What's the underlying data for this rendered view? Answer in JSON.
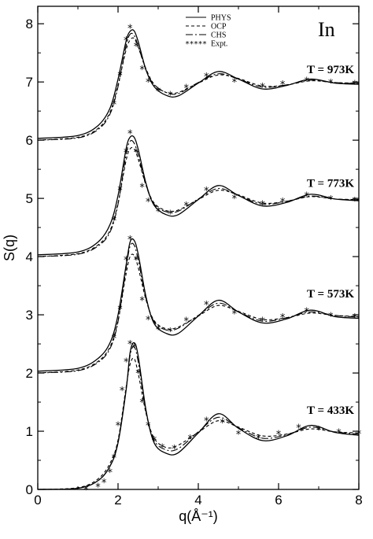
{
  "chart_data": {
    "type": "line",
    "xlabel": "q(Å⁻¹)",
    "ylabel": "S(q)",
    "element_label": "In",
    "xlim": [
      0,
      8
    ],
    "ylim": [
      0,
      8.3
    ],
    "x_ticks": [
      0,
      2,
      4,
      6,
      8
    ],
    "y_ticks": [
      0,
      1,
      2,
      3,
      4,
      5,
      6,
      7,
      8
    ],
    "grid": false,
    "legend_position": "top-center",
    "legend": [
      {
        "name": "PHYS",
        "style": "solid"
      },
      {
        "name": "OCP",
        "style": "dashed"
      },
      {
        "name": "CHS",
        "style": "dash-dot"
      },
      {
        "name": "Expt.",
        "style": "asterisk"
      }
    ],
    "panels": [
      {
        "label": "T = 973K",
        "offset": 6,
        "label_y": 7.15,
        "x": [
          0,
          1.0,
          1.5,
          1.8,
          2.0,
          2.2,
          2.3,
          2.4,
          2.5,
          2.7,
          2.9,
          3.2,
          3.5,
          4.0,
          4.5,
          5.0,
          5.6,
          6.2,
          6.8,
          7.4,
          8.0
        ],
        "PHYS": [
          0.03,
          0.08,
          0.25,
          0.55,
          1.05,
          1.7,
          1.87,
          1.88,
          1.7,
          1.2,
          0.92,
          0.77,
          0.76,
          0.98,
          1.18,
          1.05,
          0.88,
          0.94,
          1.05,
          0.98,
          0.96
        ],
        "OCP": [
          0.0,
          0.05,
          0.2,
          0.48,
          0.95,
          1.55,
          1.72,
          1.75,
          1.6,
          1.22,
          0.96,
          0.82,
          0.82,
          0.98,
          1.12,
          1.06,
          0.93,
          0.95,
          1.02,
          0.99,
          0.98
        ],
        "CHS": [
          0.0,
          0.04,
          0.18,
          0.45,
          0.92,
          1.62,
          1.82,
          1.8,
          1.62,
          1.2,
          0.95,
          0.82,
          0.8,
          0.99,
          1.14,
          1.05,
          0.91,
          0.95,
          1.03,
          0.99,
          0.97
        ],
        "expt_x": [
          1.9,
          2.05,
          2.2,
          2.3,
          2.45,
          2.6,
          2.75,
          3.0,
          3.3,
          3.7,
          4.2,
          4.9,
          5.6,
          6.1,
          6.7,
          7.3,
          7.9
        ],
        "expt_y": [
          0.62,
          1.12,
          1.72,
          1.93,
          1.62,
          1.22,
          1.0,
          0.85,
          0.78,
          0.9,
          1.1,
          1.0,
          0.92,
          0.96,
          1.02,
          0.99,
          0.97
        ]
      },
      {
        "label": "T = 773K",
        "offset": 4,
        "label_y": 5.2,
        "x": [
          0,
          1.0,
          1.5,
          1.8,
          2.0,
          2.2,
          2.3,
          2.4,
          2.5,
          2.7,
          2.9,
          3.2,
          3.5,
          4.0,
          4.5,
          5.0,
          5.6,
          6.2,
          6.8,
          7.4,
          8.0
        ],
        "PHYS": [
          0.03,
          0.08,
          0.25,
          0.55,
          1.05,
          1.85,
          2.05,
          2.05,
          1.85,
          1.25,
          0.88,
          0.72,
          0.72,
          0.98,
          1.22,
          1.05,
          0.87,
          0.93,
          1.07,
          0.99,
          0.96
        ],
        "OCP": [
          0.0,
          0.05,
          0.2,
          0.45,
          0.92,
          1.65,
          1.85,
          1.85,
          1.68,
          1.22,
          0.92,
          0.79,
          0.8,
          0.98,
          1.14,
          1.06,
          0.92,
          0.95,
          1.03,
          0.99,
          0.98
        ],
        "CHS": [
          0.0,
          0.04,
          0.18,
          0.42,
          0.9,
          1.75,
          1.98,
          1.95,
          1.75,
          1.22,
          0.9,
          0.77,
          0.78,
          0.99,
          1.17,
          1.05,
          0.9,
          0.95,
          1.04,
          0.99,
          0.97
        ],
        "expt_x": [
          1.9,
          2.05,
          2.2,
          2.3,
          2.45,
          2.6,
          2.75,
          3.0,
          3.3,
          3.7,
          4.2,
          4.9,
          5.6,
          6.1,
          6.7,
          7.3,
          7.9
        ],
        "expt_y": [
          0.62,
          1.15,
          1.8,
          2.12,
          1.8,
          1.2,
          0.95,
          0.78,
          0.74,
          0.88,
          1.14,
          1.0,
          0.9,
          0.95,
          1.05,
          0.99,
          0.96
        ]
      },
      {
        "label": "T = 573K",
        "offset": 2,
        "label_y": 3.3,
        "x": [
          0,
          1.0,
          1.5,
          1.8,
          2.0,
          2.2,
          2.3,
          2.4,
          2.5,
          2.7,
          2.9,
          3.2,
          3.5,
          4.0,
          4.5,
          5.0,
          5.6,
          6.2,
          6.8,
          7.4,
          8.0
        ],
        "PHYS": [
          0.03,
          0.08,
          0.25,
          0.52,
          1.0,
          1.85,
          2.25,
          2.28,
          2.05,
          1.3,
          0.85,
          0.68,
          0.68,
          0.98,
          1.25,
          1.05,
          0.86,
          0.93,
          1.08,
          0.97,
          0.94
        ],
        "OCP": [
          0.0,
          0.05,
          0.2,
          0.45,
          0.9,
          1.7,
          2.0,
          2.02,
          1.82,
          1.25,
          0.9,
          0.76,
          0.79,
          0.98,
          1.16,
          1.06,
          0.92,
          0.95,
          1.03,
          0.99,
          0.97
        ],
        "CHS": [
          0.0,
          0.04,
          0.18,
          0.42,
          0.88,
          1.8,
          2.18,
          2.2,
          1.95,
          1.27,
          0.88,
          0.74,
          0.77,
          0.99,
          1.2,
          1.05,
          0.89,
          0.95,
          1.05,
          0.99,
          0.96
        ],
        "expt_x": [
          1.9,
          2.05,
          2.2,
          2.3,
          2.45,
          2.6,
          2.75,
          3.0,
          3.3,
          3.7,
          4.2,
          4.9,
          5.6,
          6.1,
          6.7,
          7.3,
          7.9
        ],
        "expt_y": [
          0.6,
          1.1,
          1.95,
          2.3,
          1.95,
          1.25,
          0.92,
          0.75,
          0.72,
          0.9,
          1.18,
          1.02,
          0.9,
          0.96,
          1.06,
          0.98,
          0.96
        ]
      },
      {
        "label": "T = 433K",
        "offset": 0,
        "label_y": 1.3,
        "x": [
          0,
          1.0,
          1.5,
          1.8,
          2.0,
          2.2,
          2.3,
          2.4,
          2.5,
          2.7,
          2.9,
          3.2,
          3.5,
          4.0,
          4.5,
          5.0,
          5.6,
          6.2,
          6.8,
          7.4,
          8.0
        ],
        "PHYS": [
          0.0,
          0.02,
          0.15,
          0.4,
          0.8,
          1.7,
          2.35,
          2.52,
          2.3,
          1.35,
          0.8,
          0.62,
          0.63,
          0.97,
          1.3,
          1.05,
          0.84,
          0.92,
          1.1,
          0.98,
          0.93
        ],
        "OCP": [
          0.0,
          0.03,
          0.18,
          0.45,
          0.85,
          1.75,
          2.15,
          2.25,
          2.0,
          1.3,
          0.88,
          0.72,
          0.76,
          0.98,
          1.18,
          1.07,
          0.92,
          0.95,
          1.04,
          0.99,
          0.97
        ],
        "CHS": [
          0.0,
          0.02,
          0.15,
          0.4,
          0.82,
          1.72,
          2.3,
          2.45,
          2.2,
          1.32,
          0.84,
          0.68,
          0.7,
          0.99,
          1.24,
          1.06,
          0.88,
          0.94,
          1.07,
          0.99,
          0.95
        ],
        "expt_x": [
          1.2,
          1.5,
          1.65,
          1.8,
          1.9,
          2.0,
          2.1,
          2.2,
          2.3,
          2.4,
          2.5,
          2.6,
          2.75,
          2.9,
          3.1,
          3.4,
          3.8,
          4.2,
          4.6,
          5.0,
          5.5,
          6.0,
          6.5,
          7.0,
          7.5,
          8.0
        ],
        "expt_y": [
          0.0,
          0.05,
          0.12,
          0.3,
          0.55,
          1.1,
          1.7,
          2.2,
          2.5,
          2.45,
          2.0,
          1.5,
          1.1,
          0.85,
          0.72,
          0.7,
          0.88,
          1.18,
          1.15,
          0.95,
          0.88,
          0.95,
          1.06,
          1.03,
          0.98,
          0.96
        ]
      }
    ]
  }
}
